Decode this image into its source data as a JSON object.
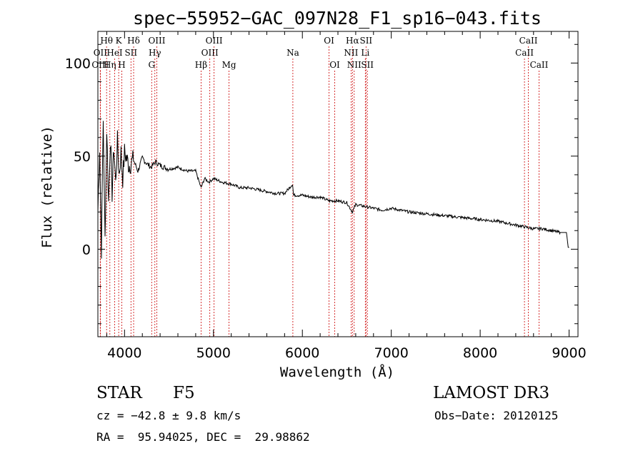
{
  "chart_data": {
    "type": "line",
    "title": "spec−55952−GAC_097N28_F1_sp16−043.fits",
    "xlabel": "Wavelength (Å)",
    "ylabel": "Flux (relative)",
    "xlim": [
      3700,
      9100
    ],
    "ylim": [
      -47,
      117
    ],
    "xticks": [
      4000,
      5000,
      6000,
      7000,
      8000,
      9000
    ],
    "yticks": [
      0,
      50,
      100
    ],
    "series": [
      {
        "name": "spectrum",
        "x": [
          3700,
          3720,
          3740,
          3760,
          3780,
          3800,
          3820,
          3840,
          3860,
          3880,
          3900,
          3920,
          3940,
          3960,
          3980,
          4000,
          4050,
          4100,
          4150,
          4200,
          4250,
          4300,
          4350,
          4400,
          4500,
          4600,
          4700,
          4800,
          4860,
          4900,
          4950,
          5000,
          5100,
          5200,
          5300,
          5400,
          5500,
          5600,
          5700,
          5800,
          5890,
          5900,
          6000,
          6100,
          6200,
          6300,
          6400,
          6500,
          6563,
          6600,
          6700,
          6800,
          6900,
          7000,
          7200,
          7400,
          7600,
          7800,
          8000,
          8200,
          8400,
          8500,
          8600,
          8700,
          8800,
          8900,
          8970,
          8990,
          9000
        ],
        "y": [
          20,
          55,
          0,
          70,
          5,
          65,
          25,
          60,
          30,
          55,
          35,
          58,
          40,
          52,
          38,
          52,
          45,
          48,
          42,
          49,
          46,
          44,
          47,
          45,
          43,
          44,
          42,
          42,
          33,
          38,
          36,
          38,
          36,
          35,
          33,
          33,
          32,
          31,
          30,
          30,
          35,
          29,
          29,
          28,
          28,
          26,
          26,
          25,
          20,
          24,
          23,
          22,
          21,
          22,
          20,
          19,
          18,
          17,
          16,
          15,
          13,
          12,
          11,
          11,
          10,
          9,
          9,
          1,
          1
        ]
      }
    ],
    "lines": [
      {
        "name": "Hθ",
        "x": 3798,
        "row": 1
      },
      {
        "name": "OII",
        "x": 3727,
        "row": 2
      },
      {
        "name": "OIII",
        "x": 3727,
        "row": 3
      },
      {
        "name": "Hη",
        "x": 3835,
        "row": 3
      },
      {
        "name": "K",
        "x": 3934,
        "row": 1
      },
      {
        "name": "HeI",
        "x": 3889,
        "row": 2
      },
      {
        "name": "H",
        "x": 3969,
        "row": 3
      },
      {
        "name": "Hδ",
        "x": 4102,
        "row": 1
      },
      {
        "name": "SII",
        "x": 4072,
        "row": 2
      },
      {
        "name": "OIII",
        "x": 4363,
        "row": 1
      },
      {
        "name": "Hγ",
        "x": 4341,
        "row": 2
      },
      {
        "name": "G",
        "x": 4305,
        "row": 3
      },
      {
        "name": "OIII",
        "x": 5007,
        "row": 1
      },
      {
        "name": "OIII",
        "x": 4959,
        "row": 2
      },
      {
        "name": "Hβ",
        "x": 4861,
        "row": 3
      },
      {
        "name": "Mg",
        "x": 5175,
        "row": 3
      },
      {
        "name": "Na",
        "x": 5893,
        "row": 2
      },
      {
        "name": "OI",
        "x": 6300,
        "row": 1
      },
      {
        "name": "OI",
        "x": 6364,
        "row": 3
      },
      {
        "name": "Hα",
        "x": 6563,
        "row": 1
      },
      {
        "name": "SII",
        "x": 6716,
        "row": 1
      },
      {
        "name": "NII",
        "x": 6548,
        "row": 2
      },
      {
        "name": "Li",
        "x": 6708,
        "row": 2
      },
      {
        "name": "NII",
        "x": 6583,
        "row": 3
      },
      {
        "name": "SII",
        "x": 6731,
        "row": 3
      },
      {
        "name": "CaII",
        "x": 8542,
        "row": 1
      },
      {
        "name": "CaII",
        "x": 8498,
        "row": 2
      },
      {
        "name": "CaII",
        "x": 8662,
        "row": 3
      }
    ]
  },
  "info": {
    "class": "STAR",
    "subclass": "F5",
    "survey": "LAMOST DR3",
    "cz": "cz = −42.8 ± 9.8 km/s",
    "obsdate": "Obs−Date: 20120125",
    "radec": "RA =  95.94025, DEC =  29.98862"
  },
  "colors": {
    "line_marker": "#cc0000",
    "spectrum": "#000000"
  }
}
